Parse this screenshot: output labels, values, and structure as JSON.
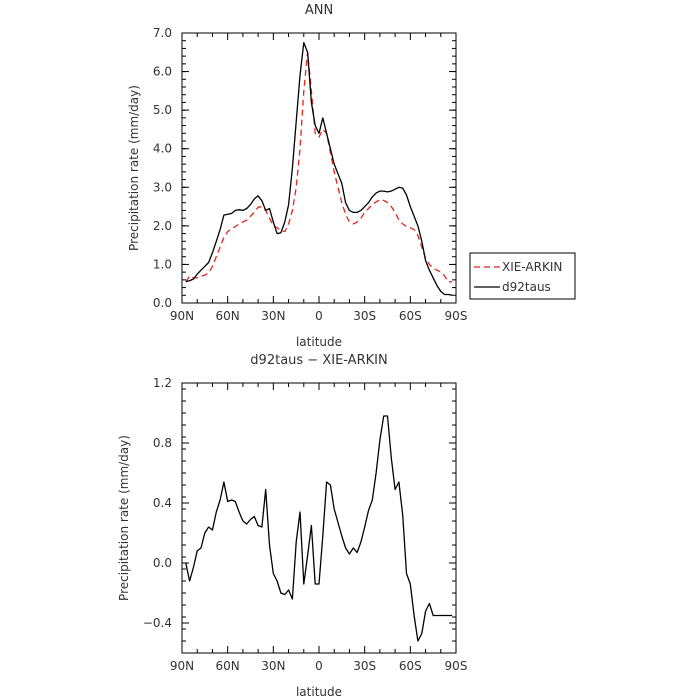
{
  "chart_data": [
    {
      "type": "line",
      "title": "ANN",
      "xlabel": "latitude",
      "ylabel": "Precipitation rate (mm/day)",
      "xlim": [
        90,
        -90
      ],
      "ylim": [
        0,
        7
      ],
      "xticks": [
        90,
        60,
        30,
        0,
        -30,
        -60,
        -90
      ],
      "xtick_labels": [
        "90N",
        "60N",
        "30N",
        "0",
        "30S",
        "60S",
        "90S"
      ],
      "yticks": [
        0,
        1,
        2,
        3,
        4,
        5,
        6,
        7
      ],
      "ytick_labels": [
        "0.0",
        "1.0",
        "2.0",
        "3.0",
        "4.0",
        "5.0",
        "6.0",
        "7.0"
      ],
      "legend_position": "right",
      "series": [
        {
          "name": "XIE-ARKIN",
          "color": "#e8231b",
          "dash": "6,4",
          "x": [
            87.5,
            85,
            82.5,
            80,
            77.5,
            75,
            72.5,
            70,
            67.5,
            65,
            62.5,
            60,
            57.5,
            55,
            52.5,
            50,
            47.5,
            45,
            42.5,
            40,
            37.5,
            35,
            32.5,
            30,
            27.5,
            25,
            22.5,
            20,
            17.5,
            15,
            12.5,
            10,
            7.5,
            5,
            2.5,
            0,
            -2.5,
            -5,
            -7.5,
            -10,
            -12.5,
            -15,
            -17.5,
            -20,
            -22.5,
            -25,
            -27.5,
            -30,
            -32.5,
            -35,
            -37.5,
            -40,
            -42.5,
            -45,
            -47.5,
            -50,
            -52.5,
            -55,
            -57.5,
            -60,
            -62.5,
            -65,
            -67.5,
            -70,
            -72.5,
            -75,
            -77.5,
            -80,
            -82.5,
            -85,
            -87.5
          ],
          "values": [
            0.55,
            0.7,
            0.65,
            0.65,
            0.7,
            0.72,
            0.78,
            0.95,
            1.2,
            1.45,
            1.7,
            1.85,
            1.92,
            1.98,
            2.05,
            2.1,
            2.15,
            2.25,
            2.35,
            2.48,
            2.5,
            2.4,
            2.2,
            2.0,
            1.95,
            1.88,
            1.85,
            2.05,
            2.4,
            3.0,
            4.0,
            5.5,
            6.5,
            5.5,
            4.4,
            4.3,
            4.5,
            4.4,
            3.9,
            3.4,
            3.0,
            2.6,
            2.3,
            2.1,
            2.05,
            2.1,
            2.2,
            2.35,
            2.45,
            2.55,
            2.62,
            2.68,
            2.66,
            2.6,
            2.5,
            2.35,
            2.15,
            2.05,
            1.98,
            1.95,
            1.9,
            1.75,
            1.45,
            1.15,
            1.0,
            0.9,
            0.85,
            0.8,
            0.7,
            0.55,
            0.55
          ]
        },
        {
          "name": "d92taus",
          "color": "#000000",
          "dash": "",
          "x": [
            87.5,
            85,
            82.5,
            80,
            77.5,
            75,
            72.5,
            70,
            67.5,
            65,
            62.5,
            60,
            57.5,
            55,
            52.5,
            50,
            47.5,
            45,
            42.5,
            40,
            37.5,
            35,
            32.5,
            30,
            27.5,
            25,
            22.5,
            20,
            17.5,
            15,
            12.5,
            10,
            7.5,
            5,
            2.5,
            0,
            -2.5,
            -5,
            -7.5,
            -10,
            -12.5,
            -15,
            -17.5,
            -20,
            -22.5,
            -25,
            -27.5,
            -30,
            -32.5,
            -35,
            -37.5,
            -40,
            -42.5,
            -45,
            -47.5,
            -50,
            -52.5,
            -55,
            -57.5,
            -60,
            -62.5,
            -65,
            -67.5,
            -70,
            -72.5,
            -75,
            -77.5,
            -80,
            -82.5,
            -85,
            -87.5
          ],
          "values": [
            0.55,
            0.58,
            0.62,
            0.75,
            0.85,
            0.95,
            1.05,
            1.3,
            1.6,
            1.9,
            2.28,
            2.3,
            2.32,
            2.4,
            2.42,
            2.4,
            2.45,
            2.55,
            2.7,
            2.78,
            2.65,
            2.4,
            2.45,
            2.1,
            1.8,
            1.82,
            2.1,
            2.55,
            3.5,
            4.7,
            5.9,
            6.75,
            6.5,
            5.2,
            4.6,
            4.4,
            4.8,
            4.4,
            4.0,
            3.6,
            3.35,
            3.1,
            2.6,
            2.4,
            2.35,
            2.35,
            2.4,
            2.5,
            2.6,
            2.75,
            2.85,
            2.9,
            2.9,
            2.88,
            2.9,
            2.95,
            3.0,
            2.98,
            2.8,
            2.5,
            2.25,
            2.0,
            1.6,
            1.1,
            0.85,
            0.65,
            0.45,
            0.3,
            0.22,
            0.22,
            0.2
          ]
        }
      ]
    },
    {
      "type": "line",
      "title": "d92taus − XIE-ARKIN",
      "xlabel": "latitude",
      "ylabel": "Precipitation rate (mm/day)",
      "xlim": [
        90,
        -90
      ],
      "ylim": [
        -0.6,
        1.2
      ],
      "xticks": [
        90,
        60,
        30,
        0,
        -30,
        -60,
        -90
      ],
      "xtick_labels": [
        "90N",
        "60N",
        "30N",
        "0",
        "30S",
        "60S",
        "90S"
      ],
      "yticks": [
        -0.4,
        0.0,
        0.4,
        0.8,
        1.2
      ],
      "ytick_labels": [
        "−0.4",
        "0.0",
        "0.4",
        "0.8",
        "1.2"
      ],
      "series": [
        {
          "name": "",
          "color": "#000000",
          "dash": "",
          "x": [
            87.5,
            85,
            82.5,
            80,
            77.5,
            75,
            72.5,
            70,
            67.5,
            65,
            62.5,
            60,
            57.5,
            55,
            52.5,
            50,
            47.5,
            45,
            42.5,
            40,
            37.5,
            35,
            32.5,
            30,
            27.5,
            25,
            22.5,
            20,
            17.5,
            15,
            12.5,
            10,
            7.5,
            5,
            2.5,
            0,
            -2.5,
            -5,
            -7.5,
            -10,
            -12.5,
            -15,
            -17.5,
            -20,
            -22.5,
            -25,
            -27.5,
            -30,
            -32.5,
            -35,
            -37.5,
            -40,
            -42.5,
            -45,
            -47.5,
            -50,
            -52.5,
            -55,
            -57.5,
            -60,
            -62.5,
            -65,
            -67.5,
            -70,
            -72.5,
            -75,
            -77.5,
            -80,
            -82.5,
            -85,
            -87.5
          ],
          "values": [
            0.0,
            -0.12,
            -0.03,
            0.08,
            0.1,
            0.2,
            0.24,
            0.22,
            0.34,
            0.42,
            0.54,
            0.41,
            0.42,
            0.41,
            0.34,
            0.28,
            0.26,
            0.29,
            0.31,
            0.25,
            0.24,
            0.49,
            0.12,
            -0.07,
            -0.12,
            -0.2,
            -0.21,
            -0.18,
            -0.24,
            0.14,
            0.34,
            -0.14,
            0.05,
            0.25,
            -0.14,
            -0.14,
            0.18,
            0.54,
            0.52,
            0.36,
            0.27,
            0.18,
            0.1,
            0.06,
            0.1,
            0.07,
            0.14,
            0.24,
            0.35,
            0.42,
            0.6,
            0.82,
            0.98,
            0.98,
            0.7,
            0.49,
            0.54,
            0.32,
            -0.07,
            -0.14,
            -0.35,
            -0.52,
            -0.47,
            -0.32,
            -0.27,
            -0.35,
            -0.35,
            -0.35,
            -0.35,
            -0.35,
            -0.35
          ]
        }
      ]
    }
  ],
  "legend": {
    "items": [
      {
        "label": "XIE-ARKIN"
      },
      {
        "label": "d92taus"
      }
    ]
  }
}
